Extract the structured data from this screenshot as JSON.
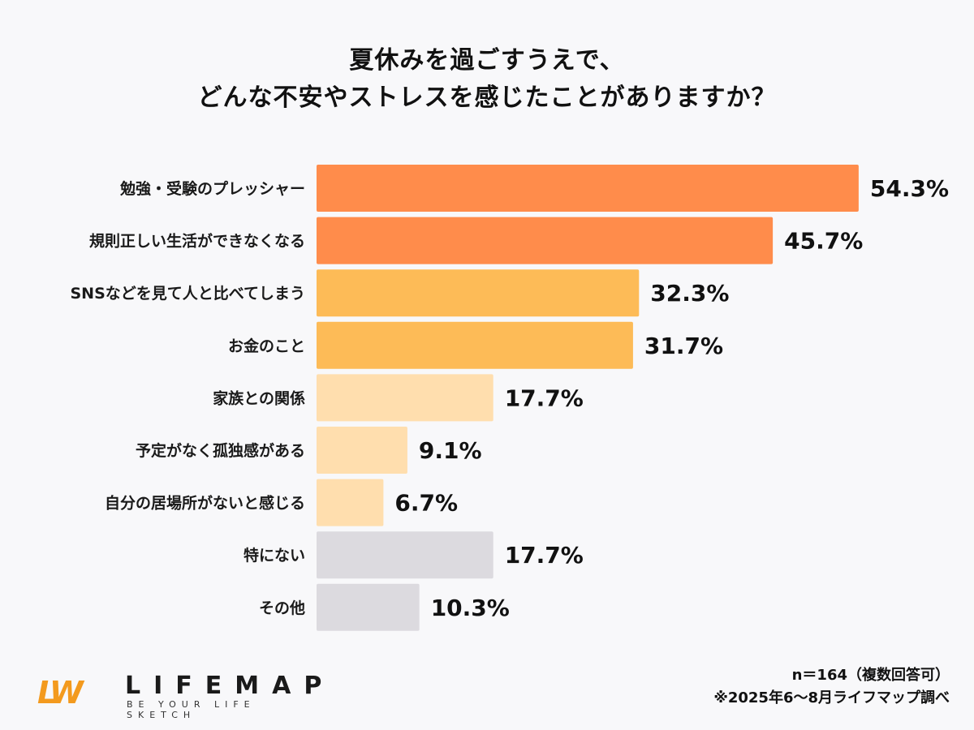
{
  "chart_data": {
    "type": "bar",
    "orientation": "horizontal",
    "title": [
      "夏休みを過ごすうえで、",
      "どんな不安やストレスを感じたことがありますか？"
    ],
    "categories": [
      "勉強・受験のプレッシャー",
      "規則正しい生活ができなくなる",
      "SNSなどを見て人と比べてしまう",
      "お金のこと",
      "家族との関係",
      "予定がなく孤独感がある",
      "自分の居場所がないと感じる",
      "特にない",
      "その他"
    ],
    "values": [
      54.3,
      45.7,
      32.3,
      31.7,
      17.7,
      9.1,
      6.7,
      17.7,
      10.3
    ],
    "labels": [
      "54.3%",
      "45.7%",
      "32.3%",
      "31.7%",
      "17.7%",
      "9.1%",
      "6.7%",
      "17.7%",
      "10.3%"
    ],
    "unit": "%",
    "colors": [
      "#ff8c4b",
      "#ff8c4b",
      "#fdbb57",
      "#fdbb57",
      "#ffdeae",
      "#ffdeae",
      "#ffdeae",
      "#dcdadf",
      "#dcdadf"
    ],
    "grid": false,
    "legend": "none"
  },
  "footer": {
    "sample_note": "n＝164（複数回答可）",
    "source_note": "※2025年6〜8月ライフマップ調べ"
  },
  "logo": {
    "mark": "LW",
    "name": "LIFEMAP",
    "tagline": "BE YOUR LIFE SKETCH",
    "color": "#f39a1e"
  }
}
